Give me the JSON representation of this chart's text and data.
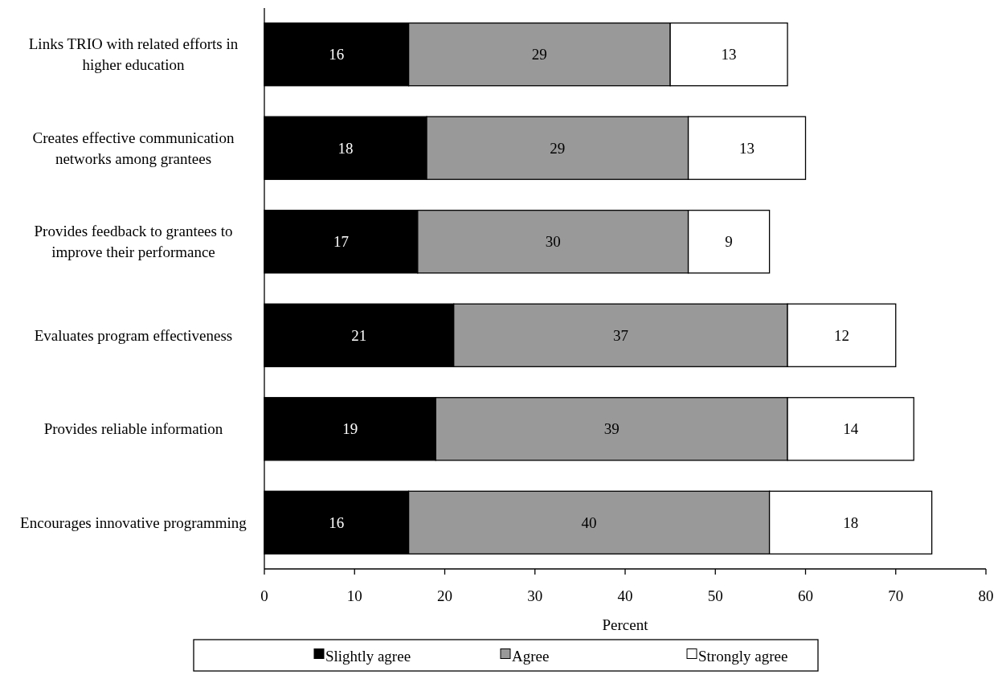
{
  "chart_data": {
    "type": "bar",
    "orientation": "horizontal",
    "stacked": true,
    "xlabel": "Percent",
    "categories": [
      "Links TRIO with related efforts in higher education",
      "Creates effective communication networks among grantees",
      "Provides feedback to grantees to improve their performance",
      "Evaluates program effectiveness",
      "Provides reliable information",
      "Encourages innovative programming"
    ],
    "series": [
      {
        "name": "Slightly agree",
        "color": "#000000",
        "values": [
          16,
          18,
          17,
          21,
          19,
          16
        ]
      },
      {
        "name": "Agree",
        "color": "#999999",
        "values": [
          29,
          29,
          30,
          37,
          39,
          40
        ]
      },
      {
        "name": "Strongly agree",
        "color": "#ffffff",
        "values": [
          13,
          13,
          9,
          12,
          14,
          18
        ]
      }
    ],
    "xlim": [
      0,
      80
    ],
    "xticks": [
      0,
      10,
      20,
      30,
      40,
      50,
      60,
      70,
      80
    ],
    "data_labels": true,
    "legend": "bottom",
    "grid": false
  }
}
